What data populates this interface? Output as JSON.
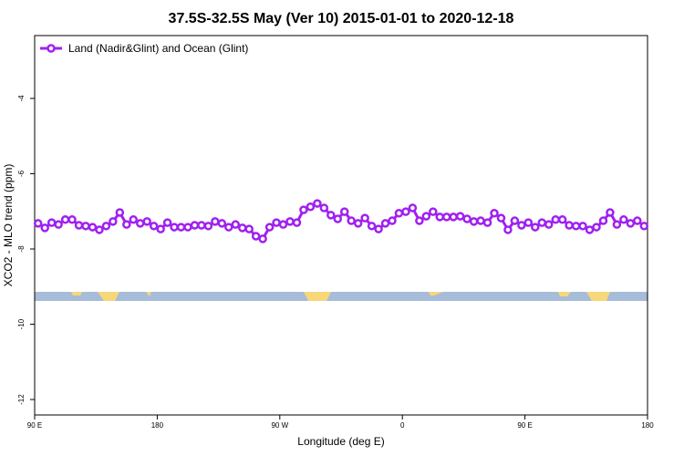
{
  "chart_data": {
    "type": "line",
    "title": "37.5S-32.5S May (Ver 10)   2015-01-01 to 2020-12-18",
    "x_label": "Longitude (deg E)",
    "y_label": "XCO2 - MLO trend (ppm)",
    "legend": "upper left",
    "xlim": [
      90,
      540
    ],
    "ylim": [
      -12.41,
      -2.33
    ],
    "xticks": [
      {
        "value": 90,
        "label": "90 E"
      },
      180,
      {
        "value": 270,
        "label": "90 W"
      },
      {
        "value": 360,
        "label": "0"
      },
      {
        "value": 450,
        "label": "90 E"
      },
      {
        "value": 540,
        "label": "180"
      }
    ],
    "yticks": [
      -4,
      -6,
      -8,
      -10,
      -12
    ],
    "x": [
      92.5,
      97.5,
      102.5,
      107.5,
      112.5,
      117.5,
      122.5,
      127.5,
      132.5,
      137.5,
      142.5,
      147.5,
      152.5,
      157.5,
      162.5,
      167.5,
      172.5,
      177.5,
      182.5,
      187.5,
      192.5,
      197.5,
      202.5,
      207.5,
      212.5,
      217.5,
      222.5,
      227.5,
      232.5,
      237.5,
      242.5,
      247.5,
      252.5,
      257.5,
      262.5,
      267.5,
      272.5,
      277.5,
      282.5,
      287.5,
      292.5,
      297.5,
      302.5,
      307.5,
      312.5,
      317.5,
      322.5,
      327.5,
      332.5,
      337.5,
      342.5,
      347.5,
      352.5,
      357.5,
      362.5,
      367.5,
      372.5,
      377.5,
      382.5,
      387.5,
      392.5,
      397.5,
      402.5,
      407.5,
      412.5,
      417.5,
      422.5,
      427.5,
      432.5,
      437.5,
      442.5,
      447.5,
      452.5,
      457.5,
      462.5,
      467.5,
      472.5,
      477.5,
      482.5,
      487.5,
      492.5,
      497.5,
      502.5,
      507.5,
      512.5,
      517.5,
      522.5,
      527.5,
      532.5,
      537.5
    ],
    "series": [
      {
        "name": "Land (Nadir&Glint) and Ocean (Glint)",
        "color": "#a020f0",
        "values": [
          -7.32,
          -7.44,
          -7.3,
          -7.35,
          -7.22,
          -7.22,
          -7.37,
          -7.39,
          -7.42,
          -7.49,
          -7.39,
          -7.27,
          -7.03,
          -7.35,
          -7.22,
          -7.32,
          -7.27,
          -7.39,
          -7.47,
          -7.3,
          -7.42,
          -7.42,
          -7.42,
          -7.37,
          -7.37,
          -7.39,
          -7.27,
          -7.32,
          -7.42,
          -7.35,
          -7.44,
          -7.47,
          -7.66,
          -7.73,
          -7.42,
          -7.3,
          -7.35,
          -7.27,
          -7.3,
          -6.96,
          -6.88,
          -6.79,
          -6.91,
          -7.1,
          -7.2,
          -7.01,
          -7.25,
          -7.32,
          -7.18,
          -7.39,
          -7.47,
          -7.32,
          -7.25,
          -7.05,
          -7.01,
          -6.91,
          -7.25,
          -7.13,
          -7.01,
          -7.15,
          -7.15,
          -7.15,
          -7.13,
          -7.2,
          -7.27,
          -7.25,
          -7.3,
          -7.05,
          -7.18,
          -7.49,
          -7.25,
          -7.37,
          -7.3,
          -7.42,
          -7.3,
          -7.35,
          -7.22,
          -7.22,
          -7.37,
          -7.39,
          -7.39,
          -7.49,
          -7.42,
          -7.25,
          -7.03,
          -7.35,
          -7.22,
          -7.32,
          -7.25,
          -7.39
        ]
      }
    ]
  }
}
